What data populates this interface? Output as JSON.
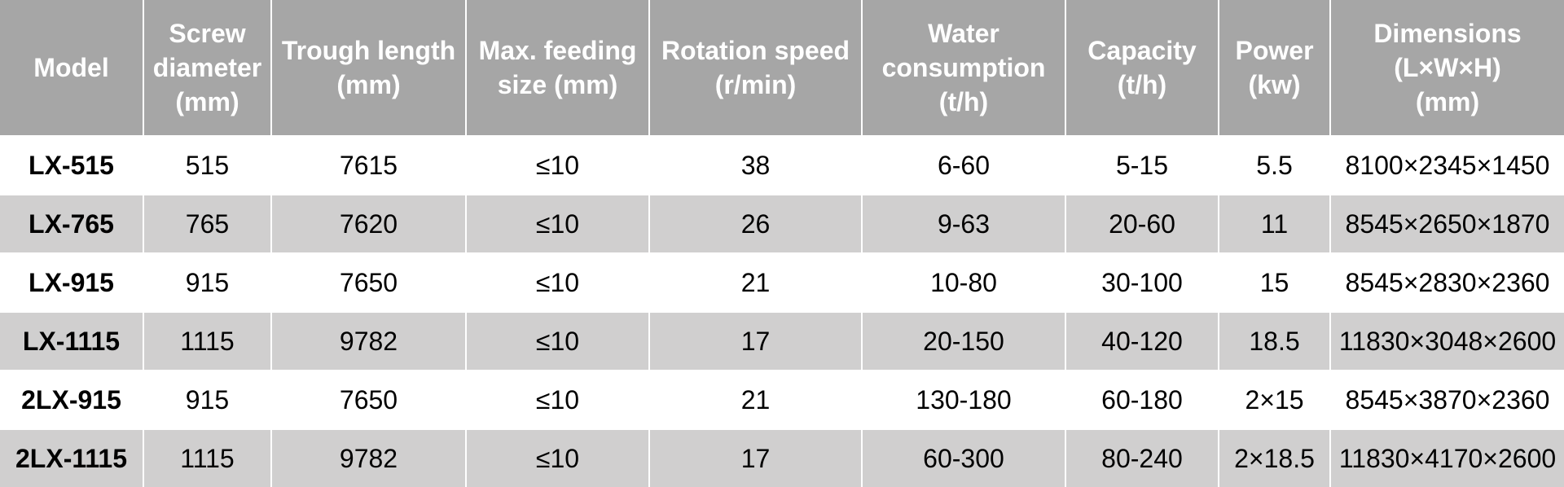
{
  "table": {
    "headers": [
      [
        "Model"
      ],
      [
        "Screw",
        "diameter",
        "(mm)"
      ],
      [
        "Trough length",
        "(mm)"
      ],
      [
        "Max. feeding",
        "size (mm)"
      ],
      [
        "Rotation speed",
        "(r/min)"
      ],
      [
        "Water",
        "consumption",
        "(t/h)"
      ],
      [
        "Capacity",
        "(t/h)"
      ],
      [
        "Power",
        "(kw)"
      ],
      [
        "Dimensions",
        "(L×W×H)",
        "(mm)"
      ]
    ],
    "rows": [
      [
        "LX-515",
        "515",
        "7615",
        "≤10",
        "38",
        "6-60",
        "5-15",
        "5.5",
        "8100×2345×1450"
      ],
      [
        "LX-765",
        "765",
        "7620",
        "≤10",
        "26",
        "9-63",
        "20-60",
        "11",
        "8545×2650×1870"
      ],
      [
        "LX-915",
        "915",
        "7650",
        "≤10",
        "21",
        "10-80",
        "30-100",
        "15",
        "8545×2830×2360"
      ],
      [
        "LX-1115",
        "1115",
        "9782",
        "≤10",
        "17",
        "20-150",
        "40-120",
        "18.5",
        "11830×3048×2600"
      ],
      [
        "2LX-915",
        "915",
        "7650",
        "≤10",
        "21",
        "130-180",
        "60-180",
        "2×15",
        "8545×3870×2360"
      ],
      [
        "2LX-1115",
        "1115",
        "9782",
        "≤10",
        "17",
        "60-300",
        "80-240",
        "2×18.5",
        "11830×4170×2600"
      ]
    ]
  },
  "colors": {
    "header_bg": "#a6a6a6",
    "header_text": "#ffffff",
    "row_odd_bg": "#ffffff",
    "row_even_bg": "#d0cfcf",
    "cell_text": "#000000"
  }
}
